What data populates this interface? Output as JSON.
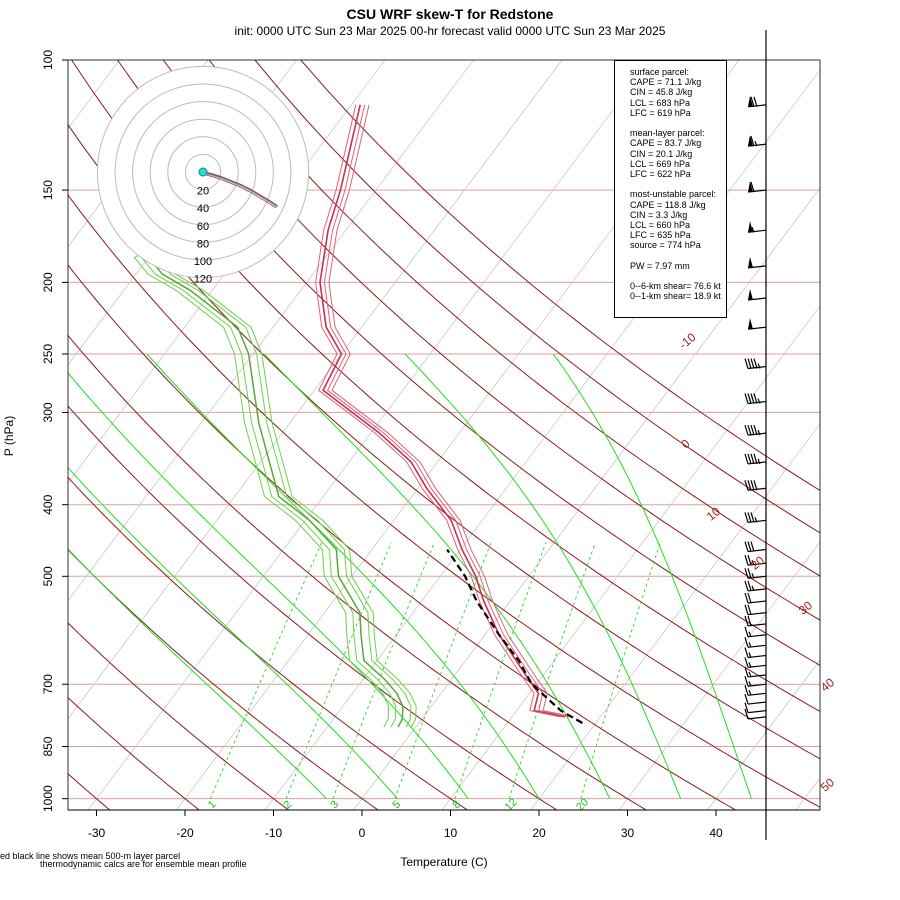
{
  "header": {
    "title": "CSU WRF skew-T for Redstone",
    "subtitle": "init: 0000 UTC Sun 23 Mar 2025     00-hr forecast valid 0000 UTC Sun 23 Mar 2025"
  },
  "chart_data": {
    "type": "skew-T",
    "xlabel": "Temperature (C)",
    "ylabel": "P (hPa)",
    "x_ticks": [
      -30,
      -20,
      -10,
      0,
      10,
      20,
      30,
      40
    ],
    "p_ticks": [
      100,
      150,
      200,
      250,
      300,
      400,
      500,
      700,
      850,
      1000
    ],
    "xlim": [
      -33,
      45
    ],
    "plim": [
      1050,
      100
    ],
    "dry_adiabat_labels": [
      "-10",
      "0",
      "10",
      "20",
      "30",
      "40",
      "50"
    ],
    "mixing_ratio_labels": [
      "1",
      "2",
      "3",
      "5",
      "8",
      "12",
      "20"
    ],
    "temperature_profile": {
      "p": [
        775,
        760,
        720,
        680,
        600,
        540,
        500,
        460,
        420,
        380,
        350,
        320,
        280,
        250,
        230,
        200,
        170,
        150,
        115
      ],
      "t": [
        16,
        12,
        11,
        8,
        1.6,
        -3,
        -6,
        -9.8,
        -13.5,
        -19,
        -23,
        -29,
        -39,
        -40,
        -44,
        -48.5,
        -52,
        -54,
        -59
      ]
    },
    "dewpoint_profile": {
      "p": [
        800,
        780,
        750,
        720,
        690,
        650,
        600,
        560,
        500,
        460,
        420,
        390,
        350,
        310,
        270,
        250,
        230,
        205,
        195,
        185,
        178
      ],
      "t": [
        -2,
        -2.2,
        -3.2,
        -5,
        -7.5,
        -11.5,
        -14,
        -16,
        -21.5,
        -24,
        -29.5,
        -35,
        -39,
        -43.5,
        -48,
        -50.5,
        -54,
        -62.5,
        -67,
        -70,
        -68
      ]
    },
    "parcel_profile": {
      "p": [
        790,
        760,
        700,
        650,
        600,
        540,
        500,
        460
      ],
      "t": [
        18.5,
        15,
        9.5,
        6,
        1.6,
        -3.8,
        -7.2,
        -11.5
      ]
    },
    "hodograph": {
      "ring_labels": [
        "20",
        "40",
        "60",
        "80",
        "100",
        "120"
      ]
    },
    "wind_barbs": {
      "p": [
        115,
        130,
        150,
        170,
        190,
        210,
        230,
        260,
        290,
        320,
        350,
        380,
        420,
        460,
        480,
        500,
        520,
        540,
        560,
        580,
        600,
        620,
        640,
        660,
        680,
        700,
        720,
        740,
        760,
        775
      ],
      "speed_kt": [
        70,
        65,
        60,
        55,
        50,
        50,
        50,
        45,
        45,
        45,
        45,
        40,
        35,
        30,
        25,
        25,
        25,
        20,
        20,
        20,
        15,
        15,
        15,
        15,
        15,
        15,
        15,
        10,
        10,
        10
      ]
    }
  },
  "info_box": {
    "lines": [
      "surface parcel:",
      "CAPE = 71.1 J/kg",
      "CIN = 45.8 J/kg",
      "LCL = 683 hPa",
      "LFC = 619 hPa",
      "",
      "mean-layer parcel:",
      "CAPE = 83.7 J/kg",
      "CIN = 20.1 J/kg",
      "LCL = 669 hPa",
      "LFC = 622 hPa",
      "",
      "most-unstable parcel:",
      "CAPE = 118.8 J/kg",
      "CIN = 3.3 J/kg",
      "LCL = 660 hPa",
      "LFC = 635 hPa",
      "source = 774 hPa",
      "",
      "PW =  7.97 mm",
      "",
      "0--6-km shear= 76.6 kt",
      "0--1-km shear= 18.9 kt"
    ]
  },
  "footnotes": {
    "line1": "ed black line shows mean 500-m layer parcel",
    "line2": "thermodynamic calcs are for ensemble mean profile"
  }
}
